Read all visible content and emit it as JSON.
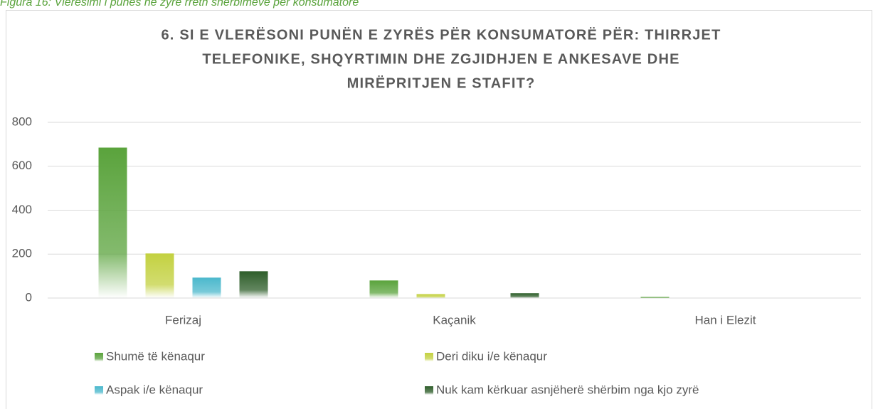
{
  "caption": "Figura 16: Vlerësimi i punës në zyrë rreth shërbimeve për konsumatorë",
  "chart_data": {
    "type": "bar",
    "title": [
      "6. SI E VLERËSONI PUNËN E ZYRËS PËR KONSUMATORË PËR: THIRRJET",
      "TELEFONIKE, SHQYRTIMIN DHE ZGJIDHJEN E ANKESAVE DHE",
      "MIRËPRITJEN E STAFIT?"
    ],
    "categories": [
      "Ferizaj",
      "Kaçanik",
      "Han i Elezit"
    ],
    "series": [
      {
        "name": "Shumë të kënaqur",
        "color": "#5aa33c",
        "values": [
          685,
          80,
          5
        ]
      },
      {
        "name": "Deri diku i/e kënaqur",
        "color": "#c3d140",
        "values": [
          203,
          18,
          0
        ]
      },
      {
        "name": "Aspak i/e kënaqur",
        "color": "#4bb8cc",
        "values": [
          93,
          0,
          0
        ]
      },
      {
        "name": "Nuk kam kërkuar asnjëherë shërbim nga kjo zyrë",
        "color": "#2e5e2a",
        "values": [
          122,
          22,
          0
        ]
      }
    ],
    "ylim": [
      0,
      800
    ],
    "yticks": [
      0,
      200,
      400,
      600,
      800
    ],
    "grid": true,
    "legend": "bottom"
  }
}
